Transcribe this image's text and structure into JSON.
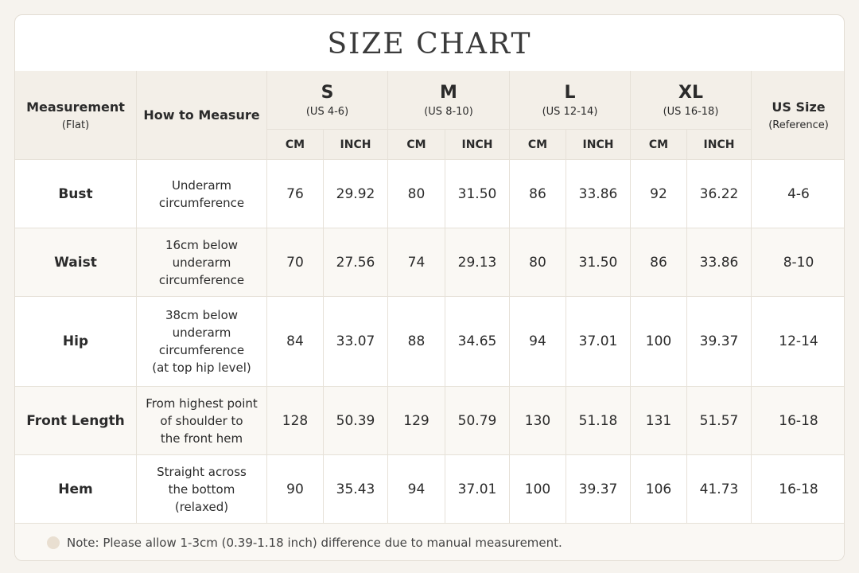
{
  "title": "SIZE CHART",
  "header": {
    "measurement": {
      "label": "Measurement",
      "sub": "(Flat)"
    },
    "how_to": "How to Measure",
    "sizes": [
      {
        "size": "S",
        "us": "(US 4-6)",
        "units": [
          "CM",
          "INCH"
        ]
      },
      {
        "size": "M",
        "us": "(US 8-10)",
        "units": [
          "CM",
          "INCH"
        ]
      },
      {
        "size": "L",
        "us": "(US 12-14)",
        "units": [
          "CM",
          "INCH"
        ]
      },
      {
        "size": "XL",
        "us": "(US 16-18)",
        "units": [
          "CM",
          "INCH"
        ]
      }
    ],
    "us_size": {
      "label": "US Size",
      "sub": "(Reference)"
    }
  },
  "rows": [
    {
      "measurement": "Bust",
      "how_to": [
        "Underarm",
        "circumference"
      ],
      "values": [
        "76",
        "29.92",
        "80",
        "31.50",
        "86",
        "33.86",
        "92",
        "36.22"
      ],
      "us_size": "4-6"
    },
    {
      "measurement": "Waist",
      "how_to": [
        "16cm below",
        "underarm",
        "circumference"
      ],
      "values": [
        "70",
        "27.56",
        "74",
        "29.13",
        "80",
        "31.50",
        "86",
        "33.86"
      ],
      "us_size": "8-10"
    },
    {
      "measurement": "Hip",
      "how_to": [
        "38cm below",
        "underarm",
        "circumference",
        "(at top hip level)"
      ],
      "values": [
        "84",
        "33.07",
        "88",
        "34.65",
        "94",
        "37.01",
        "100",
        "39.37"
      ],
      "us_size": "12-14"
    },
    {
      "measurement": "Front Length",
      "how_to": [
        "From highest point",
        "of shoulder to",
        "the front hem"
      ],
      "values": [
        "128",
        "50.39",
        "129",
        "50.79",
        "130",
        "51.18",
        "131",
        "51.57"
      ],
      "us_size": "16-18"
    },
    {
      "measurement": "Hem",
      "how_to": [
        "Straight across",
        "the bottom",
        "(relaxed)"
      ],
      "values": [
        "90",
        "35.43",
        "94",
        "37.01",
        "100",
        "39.37",
        "106",
        "41.73"
      ],
      "us_size": "16-18"
    }
  ],
  "note": "Note: Please allow 1-3cm (0.39-1.18 inch) difference due to manual measurement."
}
